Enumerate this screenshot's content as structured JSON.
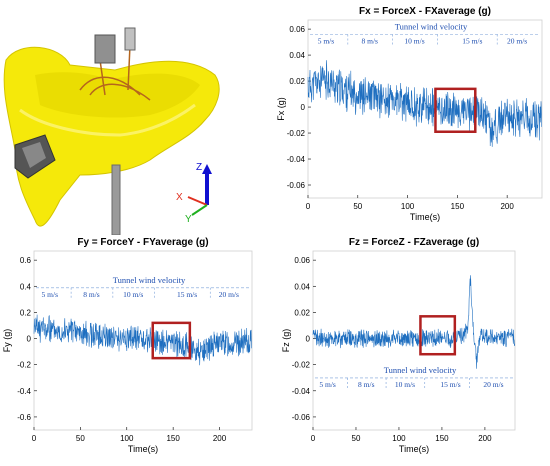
{
  "photo": {
    "axes_labels": {
      "z": "Z",
      "x": "X",
      "y": "Y"
    },
    "colors": {
      "body": "#f5e90a",
      "shadow": "#d4c400",
      "post": "#9a9a9a",
      "z_axis": "#1010d0",
      "x_axis": "#e03020",
      "y_axis": "#20b020"
    }
  },
  "chart_data": [
    {
      "type": "line",
      "title": "Fx = ForceX - FXaverage (g)",
      "xlabel": "Time(s)",
      "ylabel": "Fx (g)",
      "xlim": [
        0,
        235
      ],
      "ylim": [
        -0.07,
        0.067
      ],
      "xticks": [
        0,
        50,
        100,
        150,
        200
      ],
      "yticks": [
        0.06,
        0.04,
        0.02,
        0,
        -0.02,
        -0.04,
        -0.06
      ],
      "ytick_labels": [
        "0.06",
        "0.04",
        "0.02",
        "0",
        "-0.02",
        "-0.04",
        "-0.06"
      ],
      "band": {
        "title": "Tunnel wind velocity",
        "y": 0.052,
        "labels": [
          "5 m/s",
          "8 m/s",
          "10 m/s",
          "15 m/s",
          "20 m/s"
        ],
        "label_x": [
          18,
          62,
          107,
          165,
          210
        ],
        "dividers": [
          40,
          85,
          130,
          190
        ]
      },
      "highlight": {
        "x": [
          128,
          168
        ],
        "y": [
          -0.019,
          0.014
        ]
      },
      "series": [
        {
          "color": "#1f6fc0",
          "points": [
            [
              0,
              0.016
            ],
            [
              10,
              0.019
            ],
            [
              20,
              0.021
            ],
            [
              30,
              0.015
            ],
            [
              40,
              0.012
            ],
            [
              50,
              0.01
            ],
            [
              60,
              0.008
            ],
            [
              70,
              0.007
            ],
            [
              80,
              0.005
            ],
            [
              90,
              0.004
            ],
            [
              100,
              0.002
            ],
            [
              110,
              0.001
            ],
            [
              120,
              0.0
            ],
            [
              130,
              -0.001
            ],
            [
              140,
              -0.002
            ],
            [
              150,
              -0.003
            ],
            [
              160,
              -0.004
            ],
            [
              170,
              -0.003
            ],
            [
              175,
              -0.005
            ],
            [
              180,
              -0.01
            ],
            [
              185,
              -0.02
            ],
            [
              190,
              -0.012
            ],
            [
              200,
              -0.008
            ],
            [
              210,
              -0.007
            ],
            [
              220,
              -0.009
            ],
            [
              235,
              -0.01
            ]
          ],
          "noise": 0.013,
          "seed": 11
        }
      ]
    },
    {
      "type": "line",
      "title": "Fy = ForceY - FYaverage (g)",
      "xlabel": "Time(s)",
      "ylabel": "Fy (g)",
      "xlim": [
        0,
        235
      ],
      "ylim": [
        -0.7,
        0.67
      ],
      "xticks": [
        0,
        50,
        100,
        150,
        200
      ],
      "yticks": [
        0.6,
        0.4,
        0.2,
        0,
        -0.2,
        -0.4,
        -0.6
      ],
      "ytick_labels": [
        "0.6",
        "0.4",
        "0.2",
        "0",
        "-0.2",
        "-0.4",
        "-0.6"
      ],
      "band": {
        "title": "Tunnel wind velocity",
        "y": 0.35,
        "labels": [
          "5 m/s",
          "8 m/s",
          "10 m/s",
          "15 m/s",
          "20 m/s"
        ],
        "label_x": [
          17,
          62,
          107,
          165,
          210
        ],
        "dividers": [
          40,
          85,
          130,
          190
        ]
      },
      "highlight": {
        "x": [
          128,
          168
        ],
        "y": [
          -0.15,
          0.12
        ]
      },
      "series": [
        {
          "color": "#1f6fc0",
          "points": [
            [
              0,
              0.08
            ],
            [
              20,
              0.07
            ],
            [
              40,
              0.06
            ],
            [
              60,
              0.03
            ],
            [
              80,
              0.02
            ],
            [
              100,
              0.0
            ],
            [
              120,
              -0.01
            ],
            [
              140,
              -0.03
            ],
            [
              160,
              -0.05
            ],
            [
              170,
              -0.07
            ],
            [
              180,
              -0.1
            ],
            [
              190,
              -0.05
            ],
            [
              200,
              -0.03
            ],
            [
              215,
              -0.04
            ],
            [
              235,
              -0.03
            ]
          ],
          "noise": 0.09,
          "seed": 23
        }
      ]
    },
    {
      "type": "line",
      "title": "Fz = ForceZ - FZaverage (g)",
      "xlabel": "Time(s)",
      "ylabel": "Fz (g)",
      "xlim": [
        0,
        235
      ],
      "ylim": [
        -0.07,
        0.067
      ],
      "xticks": [
        0,
        50,
        100,
        150,
        200
      ],
      "yticks": [
        0.06,
        0.04,
        0.02,
        0,
        -0.02,
        -0.04,
        -0.06
      ],
      "ytick_labels": [
        "0.06",
        "0.04",
        "0.02",
        "0",
        "-0.02",
        "-0.04",
        "-0.06"
      ],
      "band": {
        "title": "Tunnel wind velocity",
        "y": -0.034,
        "labels": [
          "5 m/s",
          "8 m/s",
          "10 m/s",
          "15 m/s",
          "20 m/s"
        ],
        "label_x": [
          17,
          62,
          107,
          160,
          210
        ],
        "dividers": [
          40,
          85,
          130,
          182
        ]
      },
      "highlight": {
        "x": [
          125,
          165
        ],
        "y": [
          -0.012,
          0.017
        ]
      },
      "series": [
        {
          "color": "#1f6fc0",
          "points": [
            [
              0,
              0.0
            ],
            [
              40,
              0.0
            ],
            [
              80,
              0.0
            ],
            [
              120,
              0.0
            ],
            [
              160,
              0.0
            ],
            [
              175,
              0.003
            ],
            [
              180,
              0.006
            ],
            [
              183,
              0.046
            ],
            [
              186,
              0.01
            ],
            [
              190,
              -0.018
            ],
            [
              195,
              0.004
            ],
            [
              200,
              0.0
            ],
            [
              235,
              0.0
            ]
          ],
          "noise": 0.006,
          "seed": 37
        }
      ]
    }
  ]
}
